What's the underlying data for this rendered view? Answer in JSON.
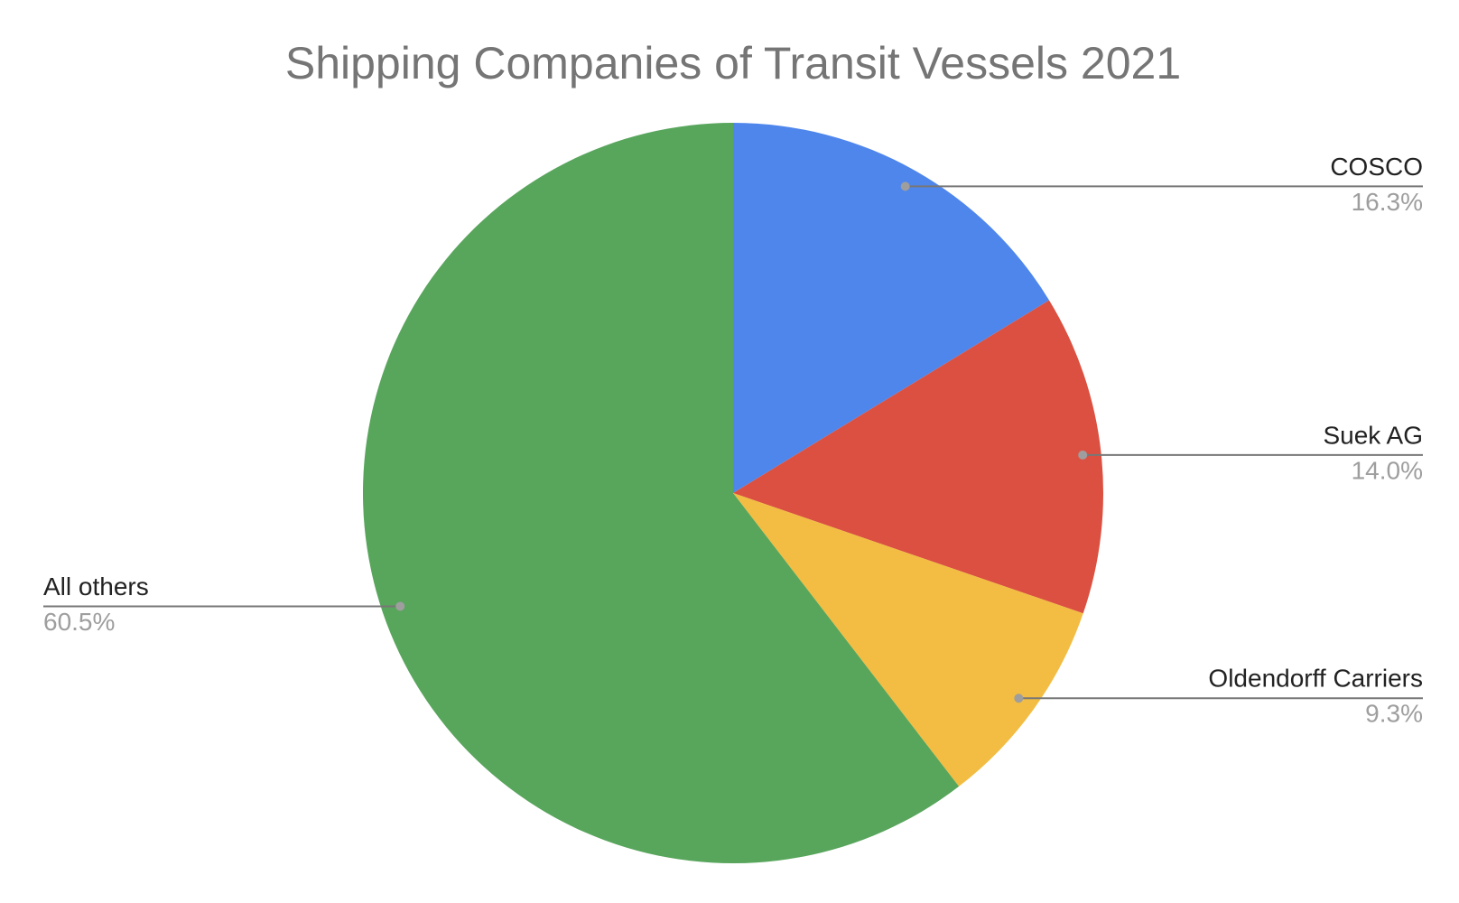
{
  "chart_data": {
    "type": "pie",
    "title": "Shipping Companies of Transit Vessels 2021",
    "categories": [
      "COSCO",
      "Suek AG",
      "Oldendorff Carriers",
      "All others"
    ],
    "values": [
      16.3,
      14.0,
      9.3,
      60.5
    ],
    "value_labels": [
      "16.3%",
      "14.0%",
      "9.3%",
      "60.5%"
    ],
    "colors": [
      "#4f86ec",
      "#db5040",
      "#f2bd42",
      "#58a55c"
    ]
  }
}
